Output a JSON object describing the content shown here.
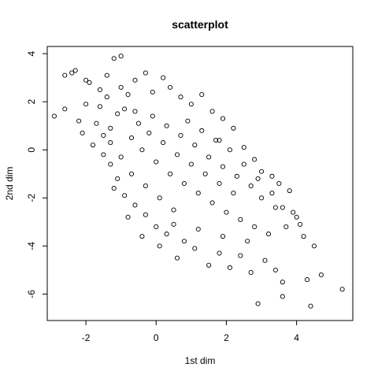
{
  "chart_data": {
    "type": "scatter",
    "title": "scatterplot",
    "xlabel": "1st dim",
    "ylabel": "2nd dim",
    "xlim": [
      -3.1,
      5.6
    ],
    "ylim": [
      -7.1,
      4.3
    ],
    "x_ticks": [
      -2,
      0,
      2,
      4
    ],
    "y_ticks": [
      -6,
      -4,
      -2,
      0,
      2,
      4
    ],
    "x_tick_labels": [
      "-2",
      "0",
      "2",
      "4"
    ],
    "y_tick_labels": [
      "-6",
      "-4",
      "-2",
      "0",
      "2",
      "4"
    ],
    "grid": false,
    "legend": "none",
    "marker": "open-circle",
    "series": [
      {
        "points": [
          [
            -2.9,
            1.4
          ],
          [
            -2.6,
            3.1
          ],
          [
            -2.4,
            3.2
          ],
          [
            -2.3,
            3.3
          ],
          [
            -2.0,
            2.9
          ],
          [
            -1.9,
            2.8
          ],
          [
            -1.6,
            2.5
          ],
          [
            -1.2,
            3.8
          ],
          [
            -1.0,
            3.9
          ],
          [
            -2.6,
            1.7
          ],
          [
            -2.2,
            1.2
          ],
          [
            -2.1,
            0.7
          ],
          [
            -1.7,
            1.1
          ],
          [
            -1.5,
            0.6
          ],
          [
            -1.3,
            0.3
          ],
          [
            -1.6,
            1.8
          ],
          [
            -1.4,
            2.2
          ],
          [
            -1.1,
            1.5
          ],
          [
            -1.3,
            0.9
          ],
          [
            -0.9,
            1.7
          ],
          [
            -0.8,
            2.3
          ],
          [
            -0.6,
            2.9
          ],
          [
            -0.3,
            3.2
          ],
          [
            -0.1,
            2.4
          ],
          [
            0.2,
            3.0
          ],
          [
            0.4,
            2.6
          ],
          [
            0.7,
            2.2
          ],
          [
            1.0,
            1.9
          ],
          [
            1.3,
            2.3
          ],
          [
            1.6,
            1.6
          ],
          [
            1.9,
            1.3
          ],
          [
            2.2,
            0.9
          ],
          [
            1.8,
            0.4
          ],
          [
            2.5,
            0.1
          ],
          [
            2.8,
            -0.4
          ],
          [
            3.0,
            -0.9
          ],
          [
            3.3,
            -1.1
          ],
          [
            3.5,
            -1.4
          ],
          [
            3.8,
            -1.7
          ],
          [
            3.9,
            -2.6
          ],
          [
            4.1,
            -3.1
          ],
          [
            4.2,
            -3.6
          ],
          [
            4.5,
            -4.0
          ],
          [
            4.7,
            -5.2
          ],
          [
            5.3,
            -5.8
          ],
          [
            4.4,
            -6.5
          ],
          [
            4.3,
            -5.4
          ],
          [
            3.6,
            -5.5
          ],
          [
            3.6,
            -6.1
          ],
          [
            2.9,
            -6.4
          ],
          [
            3.4,
            -5.0
          ],
          [
            3.1,
            -4.6
          ],
          [
            2.7,
            -5.1
          ],
          [
            2.4,
            -4.4
          ],
          [
            2.1,
            -4.9
          ],
          [
            1.8,
            -4.3
          ],
          [
            1.5,
            -4.8
          ],
          [
            1.1,
            -4.1
          ],
          [
            0.8,
            -3.8
          ],
          [
            0.6,
            -4.5
          ],
          [
            0.3,
            -3.5
          ],
          [
            0.0,
            -3.2
          ],
          [
            -0.3,
            -2.7
          ],
          [
            -0.6,
            -2.3
          ],
          [
            -0.9,
            -1.9
          ],
          [
            -1.1,
            -1.2
          ],
          [
            -1.3,
            -0.6
          ],
          [
            -1.5,
            -0.2
          ],
          [
            -1.2,
            -1.6
          ],
          [
            -0.8,
            -2.8
          ],
          [
            -0.4,
            -3.6
          ],
          [
            0.1,
            -4.0
          ],
          [
            0.5,
            -3.1
          ],
          [
            1.2,
            -3.3
          ],
          [
            1.9,
            -3.6
          ],
          [
            2.6,
            -3.8
          ],
          [
            3.2,
            -3.5
          ],
          [
            3.7,
            -3.2
          ],
          [
            3.4,
            -2.4
          ],
          [
            3.0,
            -2.0
          ],
          [
            2.7,
            -1.5
          ],
          [
            2.3,
            -1.1
          ],
          [
            1.9,
            -0.7
          ],
          [
            1.5,
            -0.3
          ],
          [
            1.1,
            0.2
          ],
          [
            0.7,
            0.6
          ],
          [
            0.3,
            1.0
          ],
          [
            -0.1,
            1.4
          ],
          [
            -0.5,
            1.1
          ],
          [
            -0.7,
            0.5
          ],
          [
            -0.4,
            0.0
          ],
          [
            0.0,
            -0.5
          ],
          [
            0.4,
            -1.0
          ],
          [
            0.8,
            -1.4
          ],
          [
            1.2,
            -1.8
          ],
          [
            1.6,
            -2.2
          ],
          [
            2.0,
            -2.6
          ],
          [
            2.4,
            -2.9
          ],
          [
            2.8,
            -3.2
          ],
          [
            0.2,
            0.3
          ],
          [
            0.6,
            -0.2
          ],
          [
            1.0,
            -0.6
          ],
          [
            1.4,
            -1.0
          ],
          [
            1.8,
            -1.4
          ],
          [
            2.2,
            -1.8
          ],
          [
            -0.2,
            0.7
          ],
          [
            -0.6,
            1.6
          ],
          [
            -1.0,
            2.6
          ],
          [
            -1.4,
            3.1
          ],
          [
            0.9,
            1.2
          ],
          [
            1.3,
            0.8
          ],
          [
            1.7,
            0.4
          ],
          [
            2.1,
            0.0
          ],
          [
            2.5,
            -0.6
          ],
          [
            2.9,
            -1.2
          ],
          [
            3.3,
            -1.8
          ],
          [
            3.6,
            -2.4
          ],
          [
            4.0,
            -2.8
          ],
          [
            0.1,
            -2.0
          ],
          [
            0.5,
            -2.5
          ],
          [
            -0.3,
            -1.5
          ],
          [
            -0.7,
            -1.0
          ],
          [
            -1.0,
            -0.3
          ],
          [
            -1.8,
            0.2
          ],
          [
            -2.0,
            1.9
          ]
        ]
      }
    ]
  }
}
